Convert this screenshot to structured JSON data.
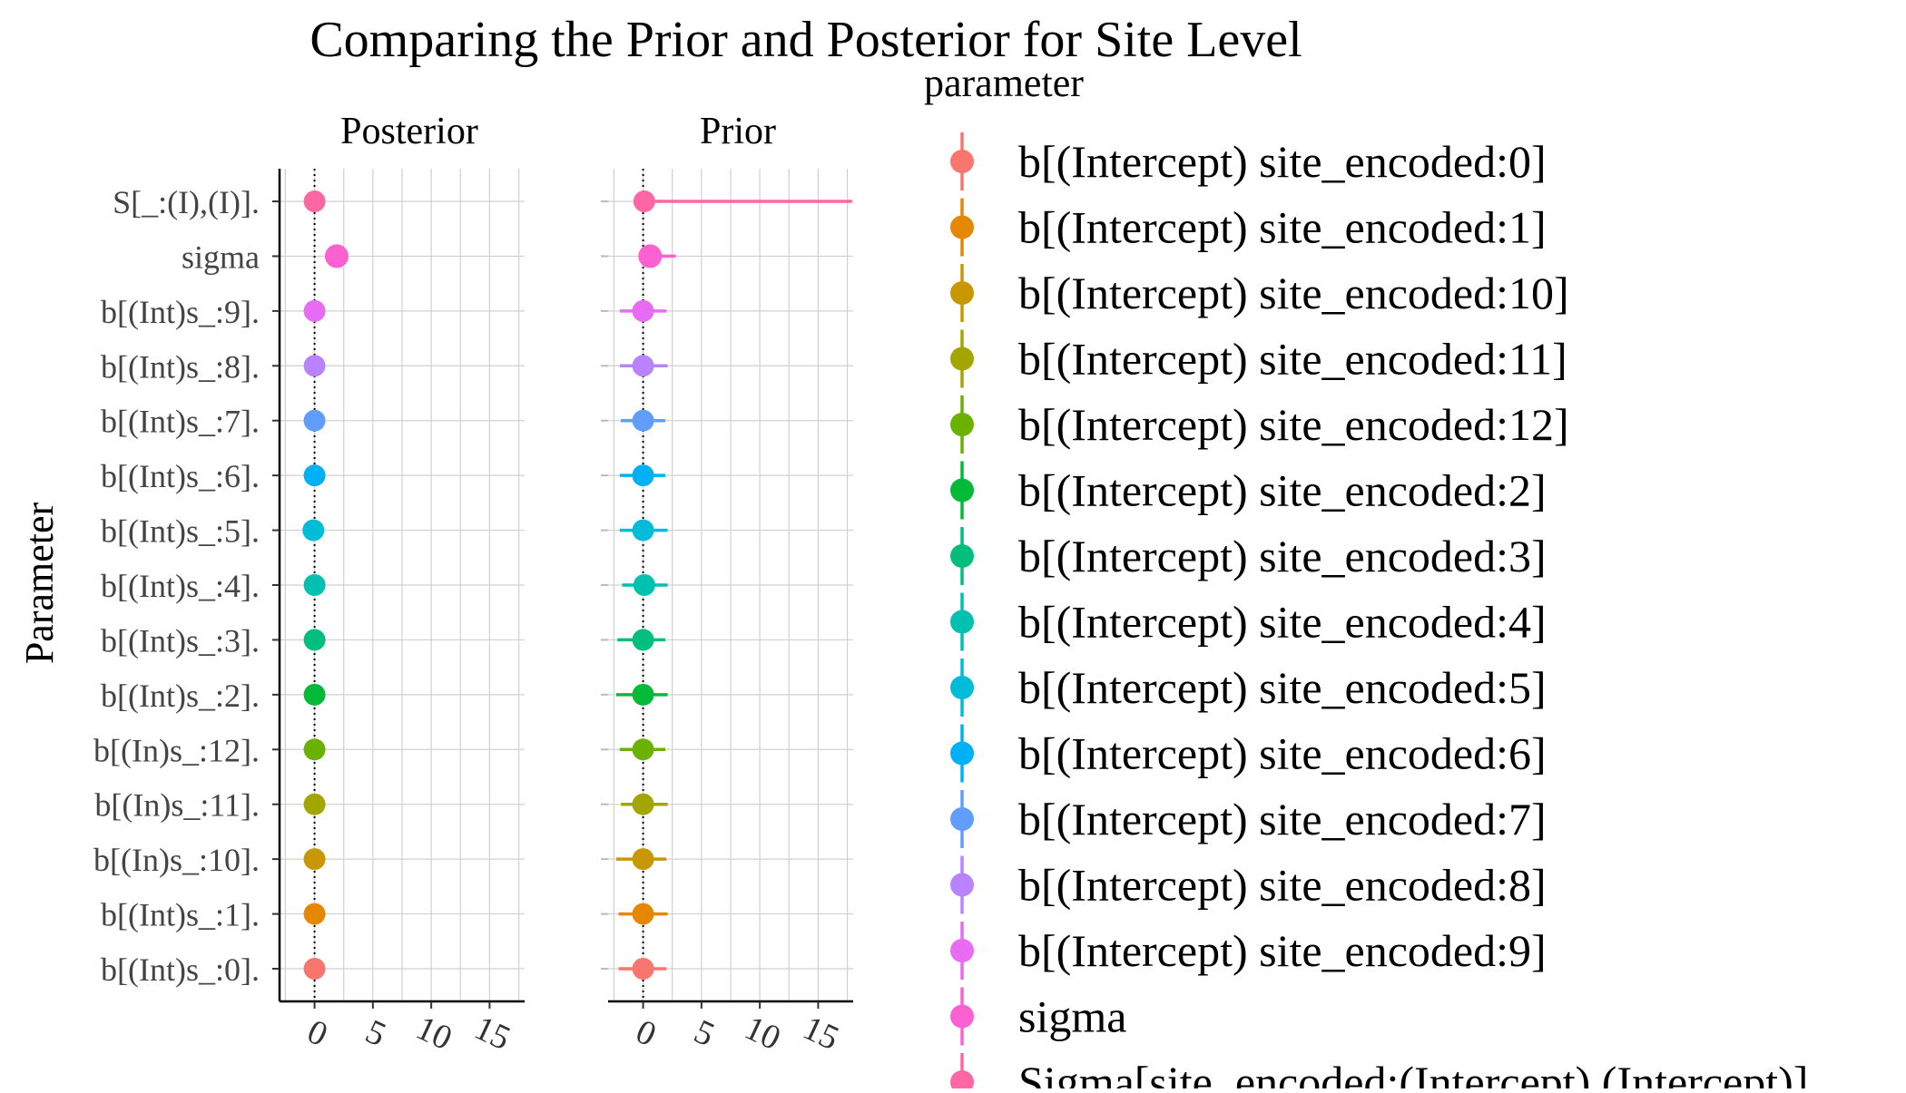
{
  "chart_data": {
    "type": "dot-interval",
    "title": "Comparing the Prior and Posterior for Site Level",
    "ylabel": "Parameter",
    "xlim": [
      -3,
      18
    ],
    "xticks": [
      0,
      5,
      10,
      15
    ],
    "grid": true,
    "reference_line_x": 0,
    "legend_title": "parameter",
    "legend_position": "right",
    "panels": [
      {
        "name": "Posterior",
        "points": [
          {
            "y": "S[_:(I),(I)].",
            "param": "Sigma[site_encoded:(Intercept),(Intercept)]",
            "value": 0.0,
            "low": 0.0,
            "high": 0.0
          },
          {
            "y": "sigma",
            "param": "sigma",
            "value": 1.9,
            "low": 1.9,
            "high": 1.9
          },
          {
            "y": "b[(Int)s_:9].",
            "param": "b[(Intercept) site_encoded:9]",
            "value": 0.0,
            "low": 0.0,
            "high": 0.0
          },
          {
            "y": "b[(Int)s_:8].",
            "param": "b[(Intercept) site_encoded:8]",
            "value": 0.0,
            "low": 0.0,
            "high": 0.0
          },
          {
            "y": "b[(Int)s_:7].",
            "param": "b[(Intercept) site_encoded:7]",
            "value": 0.0,
            "low": 0.0,
            "high": 0.0
          },
          {
            "y": "b[(Int)s_:6].",
            "param": "b[(Intercept) site_encoded:6]",
            "value": 0.0,
            "low": 0.0,
            "high": 0.0
          },
          {
            "y": "b[(Int)s_:5].",
            "param": "b[(Intercept) site_encoded:5]",
            "value": -0.1,
            "low": -0.1,
            "high": -0.1
          },
          {
            "y": "b[(Int)s_:4].",
            "param": "b[(Intercept) site_encoded:4]",
            "value": 0.0,
            "low": 0.0,
            "high": 0.0
          },
          {
            "y": "b[(Int)s_:3].",
            "param": "b[(Intercept) site_encoded:3]",
            "value": 0.0,
            "low": 0.0,
            "high": 0.0
          },
          {
            "y": "b[(Int)s_:2].",
            "param": "b[(Intercept) site_encoded:2]",
            "value": 0.0,
            "low": 0.0,
            "high": 0.0
          },
          {
            "y": "b[(In)s_:12].",
            "param": "b[(Intercept) site_encoded:12]",
            "value": 0.0,
            "low": 0.0,
            "high": 0.0
          },
          {
            "y": "b[(In)s_:11].",
            "param": "b[(Intercept) site_encoded:11]",
            "value": 0.0,
            "low": 0.0,
            "high": 0.0
          },
          {
            "y": "b[(In)s_:10].",
            "param": "b[(Intercept) site_encoded:10]",
            "value": 0.0,
            "low": 0.0,
            "high": 0.0
          },
          {
            "y": "b[(Int)s_:1].",
            "param": "b[(Intercept) site_encoded:1]",
            "value": 0.0,
            "low": 0.0,
            "high": 0.0
          },
          {
            "y": "b[(Int)s_:0].",
            "param": "b[(Intercept) site_encoded:0]",
            "value": 0.0,
            "low": 0.0,
            "high": 0.0
          }
        ]
      },
      {
        "name": "Prior",
        "points": [
          {
            "y": "S[_:(I),(I)].",
            "param": "Sigma[site_encoded:(Intercept),(Intercept)]",
            "value": 0.1,
            "low": 0.0,
            "high": 17.9
          },
          {
            "y": "sigma",
            "param": "sigma",
            "value": 0.6,
            "low": 0.0,
            "high": 2.8
          },
          {
            "y": "b[(Int)s_:9].",
            "param": "b[(Intercept) site_encoded:9]",
            "value": 0.0,
            "low": -2.0,
            "high": 2.0
          },
          {
            "y": "b[(Int)s_:8].",
            "param": "b[(Intercept) site_encoded:8]",
            "value": 0.0,
            "low": -2.0,
            "high": 2.1
          },
          {
            "y": "b[(Int)s_:7].",
            "param": "b[(Intercept) site_encoded:7]",
            "value": 0.0,
            "low": -1.9,
            "high": 1.9
          },
          {
            "y": "b[(Int)s_:6].",
            "param": "b[(Intercept) site_encoded:6]",
            "value": 0.0,
            "low": -2.0,
            "high": 1.9
          },
          {
            "y": "b[(Int)s_:5].",
            "param": "b[(Intercept) site_encoded:5]",
            "value": 0.0,
            "low": -2.0,
            "high": 2.1
          },
          {
            "y": "b[(Int)s_:4].",
            "param": "b[(Intercept) site_encoded:4]",
            "value": 0.1,
            "low": -1.8,
            "high": 2.1
          },
          {
            "y": "b[(Int)s_:3].",
            "param": "b[(Intercept) site_encoded:3]",
            "value": 0.0,
            "low": -2.2,
            "high": 1.9
          },
          {
            "y": "b[(Int)s_:2].",
            "param": "b[(Intercept) site_encoded:2]",
            "value": 0.0,
            "low": -2.3,
            "high": 2.1
          },
          {
            "y": "b[(In)s_:12].",
            "param": "b[(Intercept) site_encoded:12]",
            "value": 0.0,
            "low": -2.0,
            "high": 1.9
          },
          {
            "y": "b[(In)s_:11].",
            "param": "b[(Intercept) site_encoded:11]",
            "value": 0.0,
            "low": -1.9,
            "high": 2.1
          },
          {
            "y": "b[(In)s_:10].",
            "param": "b[(Intercept) site_encoded:10]",
            "value": 0.0,
            "low": -2.3,
            "high": 2.0
          },
          {
            "y": "b[(Int)s_:1].",
            "param": "b[(Intercept) site_encoded:1]",
            "value": 0.0,
            "low": -2.1,
            "high": 2.1
          },
          {
            "y": "b[(Int)s_:0].",
            "param": "b[(Intercept) site_encoded:0]",
            "value": 0.0,
            "low": -2.1,
            "high": 2.0
          }
        ]
      }
    ],
    "legend": [
      {
        "label": "b[(Intercept) site_encoded:0]",
        "color": "#F8766D"
      },
      {
        "label": "b[(Intercept) site_encoded:1]",
        "color": "#E58700"
      },
      {
        "label": "b[(Intercept) site_encoded:10]",
        "color": "#C99800"
      },
      {
        "label": "b[(Intercept) site_encoded:11]",
        "color": "#A3A500"
      },
      {
        "label": "b[(Intercept) site_encoded:12]",
        "color": "#6BB100"
      },
      {
        "label": "b[(Intercept) site_encoded:2]",
        "color": "#00BA38"
      },
      {
        "label": "b[(Intercept) site_encoded:3]",
        "color": "#00BF7D"
      },
      {
        "label": "b[(Intercept) site_encoded:4]",
        "color": "#00C0AF"
      },
      {
        "label": "b[(Intercept) site_encoded:5]",
        "color": "#00BCD8"
      },
      {
        "label": "b[(Intercept) site_encoded:6]",
        "color": "#00B0F6"
      },
      {
        "label": "b[(Intercept) site_encoded:7]",
        "color": "#619CFF"
      },
      {
        "label": "b[(Intercept) site_encoded:8]",
        "color": "#B983FF"
      },
      {
        "label": "b[(Intercept) site_encoded:9]",
        "color": "#E76BF3"
      },
      {
        "label": "sigma",
        "color": "#FD61D1"
      },
      {
        "label": "Sigma[site_encoded:(Intercept),(Intercept)]",
        "color": "#FF67A4"
      }
    ]
  }
}
